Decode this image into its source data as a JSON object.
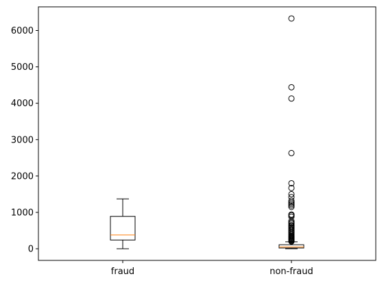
{
  "chart_data": {
    "type": "box",
    "title": "",
    "xlabel": "",
    "ylabel": "",
    "categories": [
      "fraud",
      "non-fraud"
    ],
    "ylim": [
      -320,
      6650
    ],
    "yticks": [
      0,
      1000,
      2000,
      3000,
      4000,
      5000,
      6000
    ],
    "ytick_labels": [
      "0",
      "1000",
      "2000",
      "3000",
      "4000",
      "5000",
      "6000"
    ],
    "grid": false,
    "legend": "none",
    "boxes": [
      {
        "name": "fraud",
        "whisker_low": 0,
        "q1": 240,
        "median": 380,
        "q3": 890,
        "whisker_high": 1370,
        "outliers": []
      },
      {
        "name": "non-fraud",
        "whisker_low": 0,
        "q1": 20,
        "median": 50,
        "q3": 110,
        "whisker_high": 190,
        "outliers": [
          6330,
          4440,
          4130,
          2630,
          1800,
          1670,
          1500,
          1420,
          1320,
          1270,
          1230,
          1190,
          1150,
          940,
          920,
          880,
          760,
          720,
          690,
          650,
          620,
          590,
          560,
          530,
          500,
          470,
          440,
          410,
          380,
          350,
          330,
          310,
          290,
          270,
          250,
          230,
          210,
          200
        ]
      }
    ],
    "colors": {
      "box": "#000000",
      "median": "#ff7f0e",
      "flier_edge": "#000000"
    }
  }
}
